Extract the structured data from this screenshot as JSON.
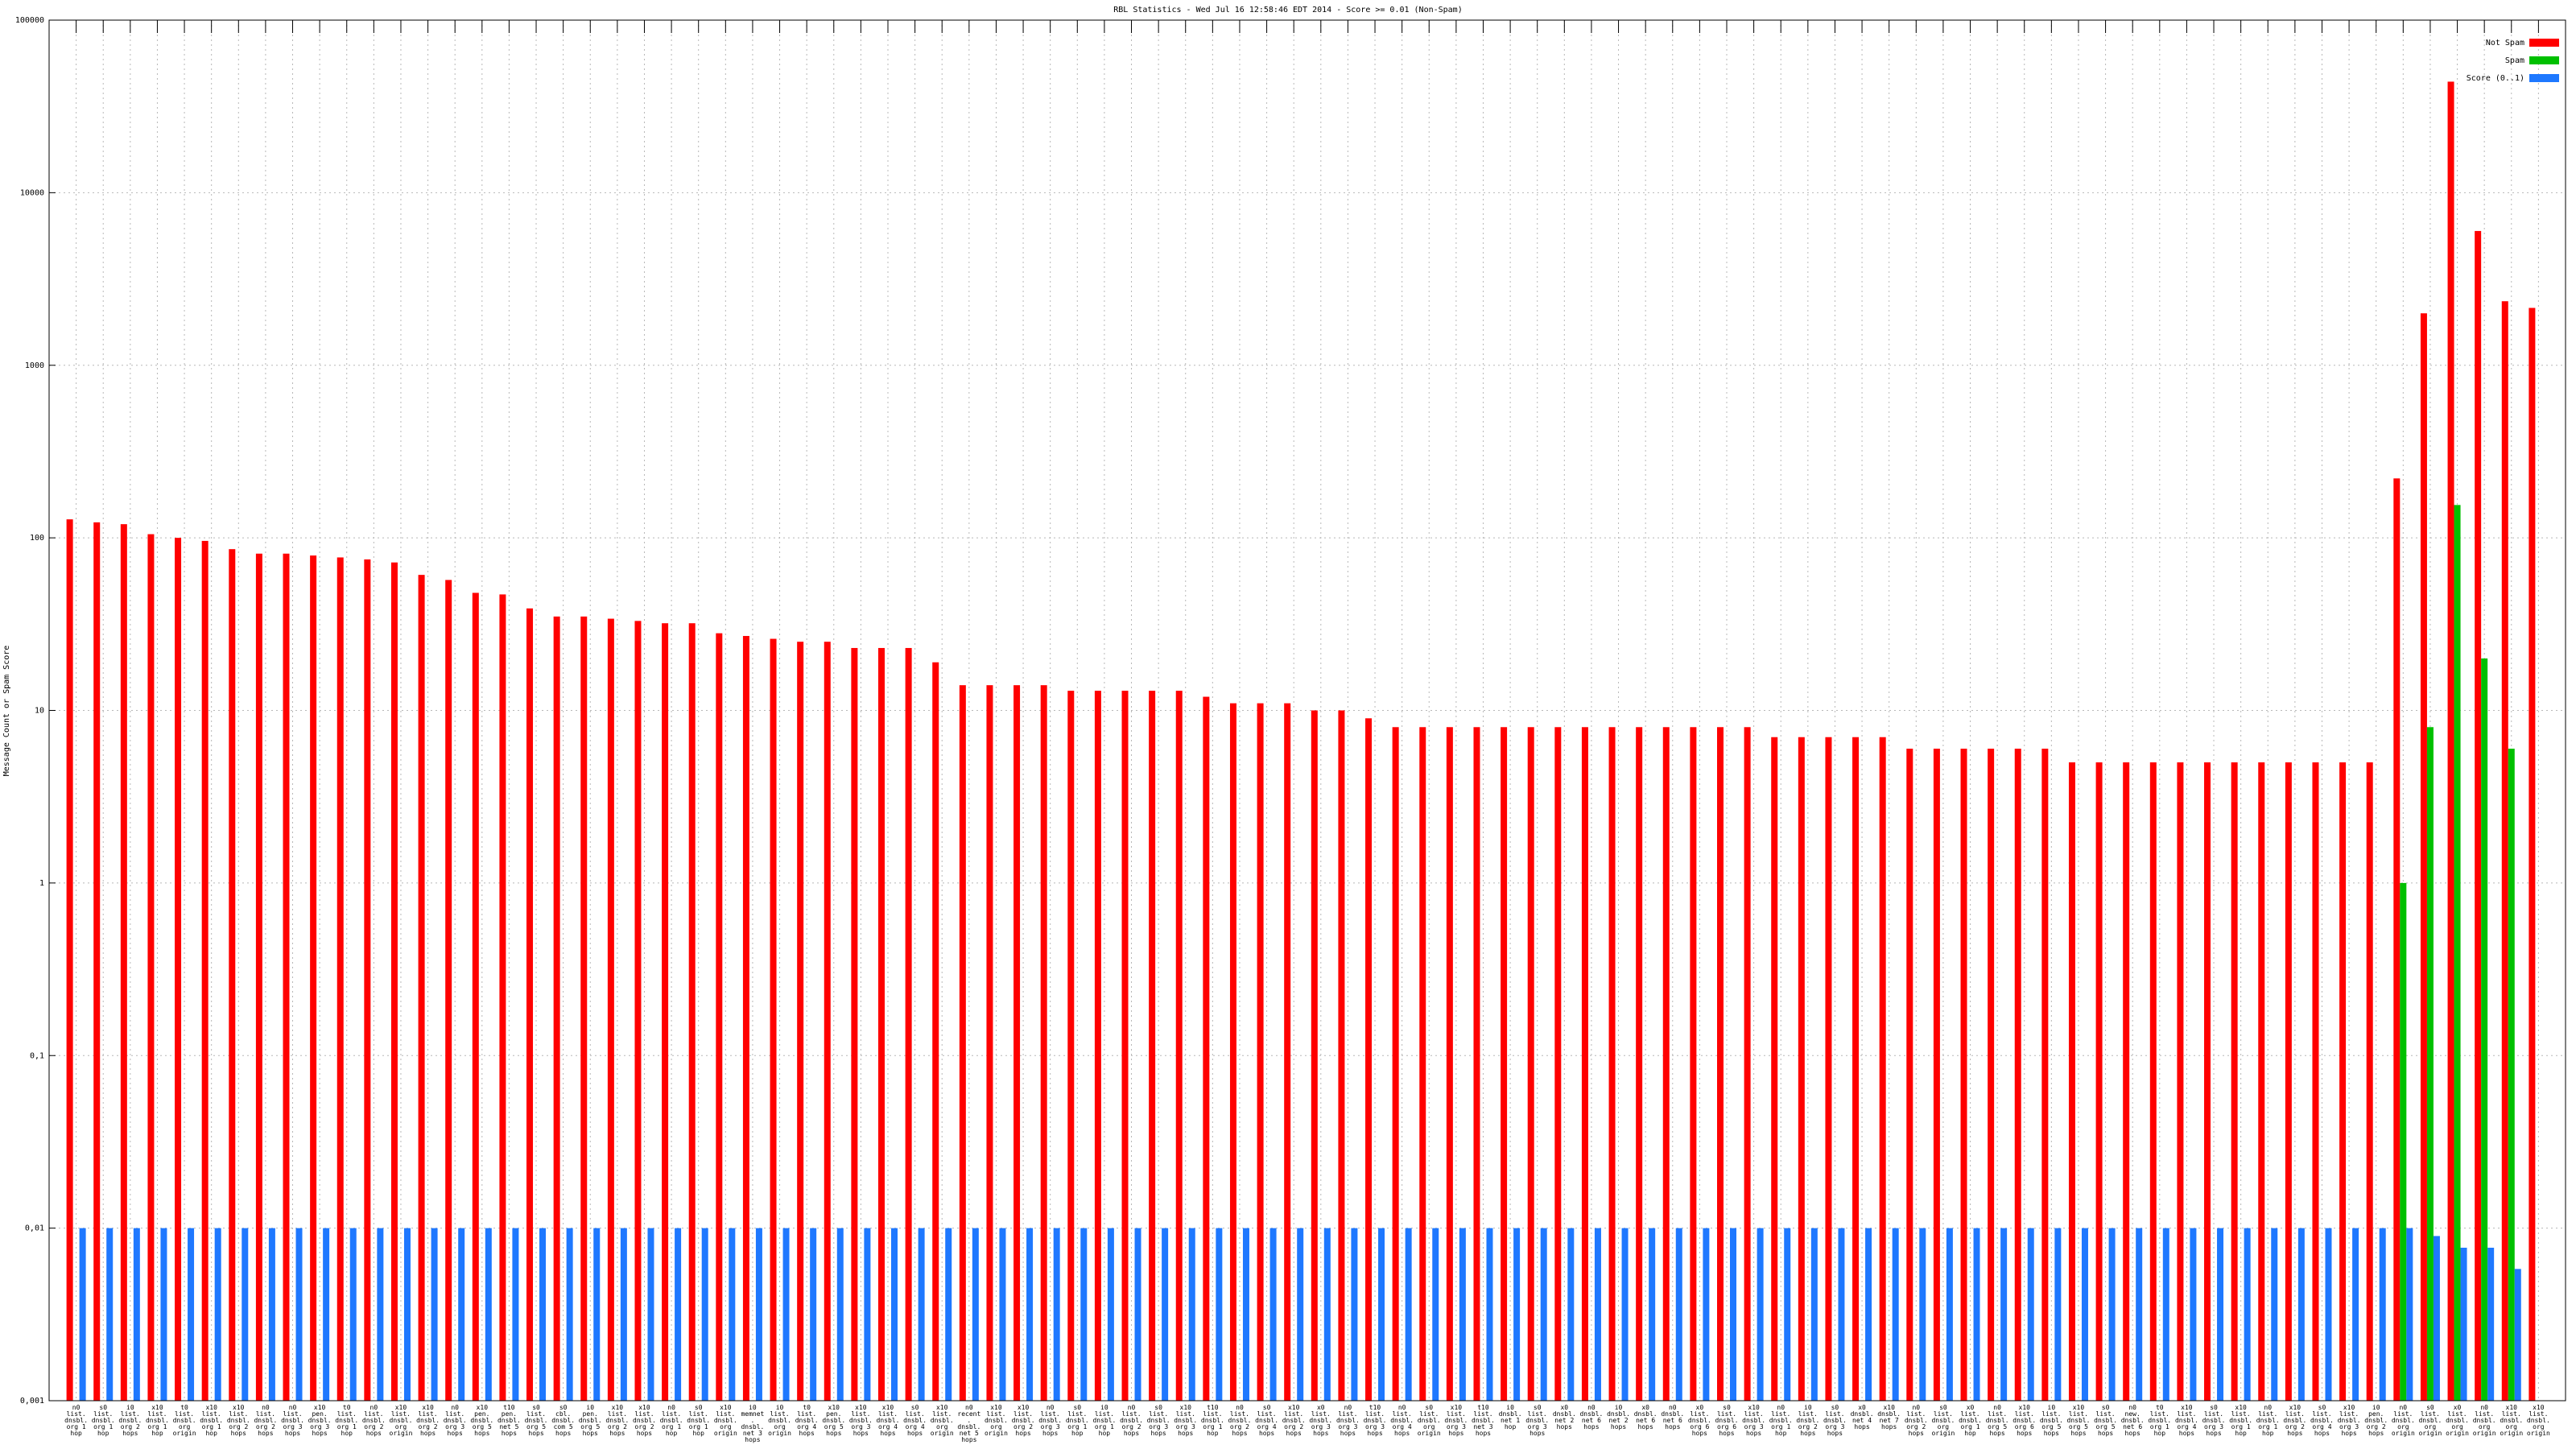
{
  "chart_data": {
    "type": "bar",
    "log_scale": true,
    "grid": true,
    "legend": "upper right",
    "title": "RBL Statistics - Wed Jul 16 12:58:46 EDT 2014 - Score >= 0.01 (Non-Spam)",
    "y_label": "Message Count or Spam Score",
    "ylim": [
      0.001,
      100000
    ],
    "yticks": [
      {
        "value": 0.001,
        "label": "0,001"
      },
      {
        "value": 0.01,
        "label": "0,01"
      },
      {
        "value": 0.1,
        "label": "0,1"
      },
      1,
      10,
      100,
      1000,
      10000,
      100000
    ],
    "categories": [
      "n0 list. dnsbl. org 1 hop",
      "s0 list. dnsbl. org 1 hop",
      "i0 list. dnsbl. org 2 hops",
      "x10 list. dnsbl. org 1 hop",
      "t0 list. dnsbl. org origin",
      "x10 list. dnsbl. org 1 hop",
      "x10 list. dnsbl. org 2 hops",
      "n0 list. dnsbl. org 2 hops",
      "n0 list. dnsbl. org 3 hops",
      "x10 pen. dnsbl. org 3 hops",
      "t0 list. dnsbl. org 1 hop",
      "n0 list. dnsbl. org 2 hops",
      "x10 list. dnsbl. org origin",
      "x10 list. dnsbl. org 2 hops",
      "n0 list. dnsbl. org 3 hops",
      "x10 pen. dnsbl. org 5 hops",
      "t10 pen. dnsbl. net 5 hops",
      "s0 list. dnsbl. org 5 hops",
      "s0 cbl. dnsbl. com 5 hops",
      "i0 pen. dnsbl. org 5 hops",
      "x10 list. dnsbl. org 2 hops",
      "x10 list. dnsbl. org 2 hops",
      "n0 list. dnsbl. org 1 hop",
      "s0 list. dnsbl. org 1 hop",
      "x10 list. dnsbl. org origin",
      "i0 memnet. dnsbl. net 3 hops",
      "i0 list. dnsbl. org origin",
      "t0 list. dnsbl. org 4 hops",
      "x10 pen. dnsbl. org 5 hops",
      "x10 list. dnsbl. org 3 hops",
      "x10 list. dnsbl. org 4 hops",
      "s0 list. dnsbl. org 4 hops",
      "x10 list. dnsbl. org origin",
      "n0 recent. dnsbl. net 5 hops",
      "x10 list. dnsbl. org origin",
      "x10 list. dnsbl. org 2 hops",
      "n0 list. dnsbl. org 3 hops",
      "s0 list. dnsbl. org 1 hop",
      "i0 list. dnsbl. org 1 hop",
      "n0 list. dnsbl. org 2 hops",
      "s0 list. dnsbl. org 3 hops",
      "x10 list. dnsbl. org 3 hops",
      "t10 list. dnsbl. org 1 hop",
      "n0 list. dnsbl. org 2 hops",
      "s0 list. dnsbl. org 4 hops",
      "x10 list. dnsbl. org 2 hops",
      "x0 list. dnsbl. org 3 hops",
      "n0 list. dnsbl. org 3 hops",
      "t10 list. dnsbl. org 3 hops",
      "n0 list. dnsbl. org 4 hops",
      "s0 list. dnsbl. org origin",
      "x10 list. dnsbl. org 3 hops",
      "t10 list. dnsbl. net 3 hops",
      "i0 dnsbl. net 1 hop",
      "s0 list. dnsbl. org 3 hops",
      "x0 dnsbl. net 2 hops",
      "n0 dnsbl. net 6 hops",
      "i0 dnsbl. net 2 hops",
      "x0 dnsbl. net 6 hops",
      "n0 dnsbl. net 6 hops",
      "x0 list. dnsbl. org 6 hops",
      "s0 list. dnsbl. org 6 hops",
      "x10 list. dnsbl. org 3 hops",
      "n0 list. dnsbl. org 1 hop",
      "i0 list. dnsbl. org 2 hops",
      "s0 list. dnsbl. org 3 hops",
      "x0 dnsbl. net 4 hops",
      "x10 dnsbl. net 7 hops",
      "n0 list. dnsbl. org 2 hops",
      "s0 list. dnsbl. org origin",
      "x0 list. dnsbl. org 1 hop",
      "n0 list. dnsbl. org 5 hops",
      "x10 list. dnsbl. org 6 hops",
      "i0 list. dnsbl. org 5 hops",
      "x10 list. dnsbl. org 5 hops",
      "s0 list. dnsbl. org 5 hops",
      "n0 new. dnsbl. net 6 hops",
      "t0 list. dnsbl. org 1 hop",
      "x10 list. dnsbl. org 4 hops",
      "s0 list. dnsbl. org 3 hops",
      "x10 list. dnsbl. org 1 hop",
      "n0 list. dnsbl. org 1 hop",
      "x10 list. dnsbl. org 2 hops",
      "s0 list. dnsbl. org 4 hops",
      "x10 list. dnsbl. org 3 hops",
      "i0 pen. dnsbl. org 2 hops",
      "n0 list. dnsbl. org origin",
      "s0 list. dnsbl. org origin",
      "x0 list. dnsbl. org origin",
      "n0 list. dnsbl. org origin",
      "x10 list. dnsbl. org origin",
      "x10 list. dnsbl. org origin"
    ],
    "series": [
      {
        "name": "Not Spam",
        "color": "#ff0000",
        "values": [
          128,
          123,
          120,
          105,
          100,
          96,
          86,
          81,
          81,
          79,
          77,
          75,
          72,
          61,
          57,
          48,
          47,
          39,
          35,
          35,
          34,
          33,
          32,
          32,
          28,
          27,
          26,
          25,
          25,
          23,
          23,
          23,
          19,
          14,
          14,
          14,
          14,
          13,
          13,
          13,
          13,
          13,
          12,
          11,
          11,
          11,
          10,
          10,
          9,
          8,
          8,
          8,
          8,
          8,
          8,
          8,
          8,
          8,
          8,
          8,
          8,
          8,
          8,
          7,
          7,
          7,
          7,
          7,
          6,
          6,
          6,
          6,
          6,
          6,
          5,
          5,
          5,
          5,
          5,
          5,
          5,
          5,
          5,
          5,
          5,
          5,
          221,
          2000,
          44000,
          6000,
          2350,
          2150
        ]
      },
      {
        "name": "Spam",
        "color": "#00c000",
        "values": [
          null,
          null,
          null,
          null,
          null,
          null,
          null,
          null,
          null,
          null,
          null,
          null,
          null,
          null,
          null,
          null,
          null,
          null,
          null,
          null,
          null,
          null,
          null,
          null,
          null,
          null,
          null,
          null,
          null,
          null,
          null,
          null,
          null,
          null,
          null,
          null,
          null,
          null,
          null,
          null,
          null,
          null,
          null,
          null,
          null,
          null,
          null,
          null,
          null,
          null,
          null,
          null,
          null,
          null,
          null,
          null,
          null,
          null,
          null,
          null,
          null,
          null,
          null,
          null,
          null,
          null,
          null,
          null,
          null,
          null,
          null,
          null,
          null,
          null,
          null,
          null,
          null,
          null,
          null,
          null,
          null,
          null,
          null,
          null,
          null,
          null,
          1,
          8,
          155,
          20,
          6,
          null
        ]
      },
      {
        "name": "Score (0..1)",
        "color": "#1e78ff",
        "values": [
          0.01,
          0.01,
          0.01,
          0.01,
          0.01,
          0.01,
          0.01,
          0.01,
          0.01,
          0.01,
          0.01,
          0.01,
          0.01,
          0.01,
          0.01,
          0.01,
          0.01,
          0.01,
          0.01,
          0.01,
          0.01,
          0.01,
          0.01,
          0.01,
          0.01,
          0.01,
          0.01,
          0.01,
          0.01,
          0.01,
          0.01,
          0.01,
          0.01,
          0.01,
          0.01,
          0.01,
          0.01,
          0.01,
          0.01,
          0.01,
          0.01,
          0.01,
          0.01,
          0.01,
          0.01,
          0.01,
          0.01,
          0.01,
          0.01,
          0.01,
          0.01,
          0.01,
          0.01,
          0.01,
          0.01,
          0.01,
          0.01,
          0.01,
          0.01,
          0.01,
          0.01,
          0.01,
          0.01,
          0.01,
          0.01,
          0.01,
          0.01,
          0.01,
          0.01,
          0.01,
          0.01,
          0.01,
          0.01,
          0.01,
          0.01,
          0.01,
          0.01,
          0.01,
          0.01,
          0.01,
          0.01,
          0.01,
          0.01,
          0.01,
          0.01,
          0.01,
          0.01,
          0.009,
          0.0077,
          0.0077,
          0.0058,
          null
        ]
      }
    ]
  }
}
